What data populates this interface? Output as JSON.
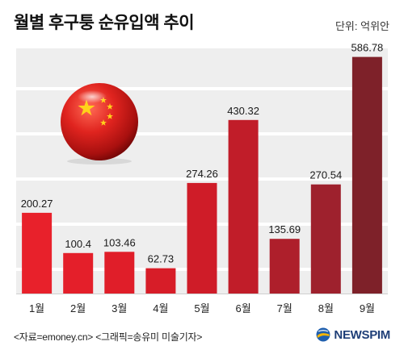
{
  "header": {
    "title": "월별 후구퉁 순유입액 추이",
    "unit": "단위: 억위안"
  },
  "chart_data": {
    "type": "bar",
    "title": "월별 후구퉁 순유입액 추이",
    "unit": "억위안",
    "categories": [
      "1월",
      "2월",
      "3월",
      "4월",
      "5월",
      "6월",
      "7월",
      "8월",
      "9월"
    ],
    "values": [
      200.27,
      100.4,
      103.46,
      62.73,
      274.26,
      430.32,
      135.69,
      270.54,
      586.78
    ],
    "value_labels": [
      "200.27",
      "100.4",
      "103.46",
      "62.73",
      "274.26",
      "430.32",
      "135.69",
      "270.54",
      "586.78"
    ],
    "ylim": [
      0,
      600
    ],
    "grid": true,
    "colors": [
      "#e8212b",
      "#e41f2a",
      "#e01e29",
      "#d71d28",
      "#cf1c28",
      "#c11d29",
      "#ae1f2b",
      "#9e212d",
      "#7e2129"
    ]
  },
  "footer": {
    "source": "<자료=emoney.cn> <그래픽=송유미 미술기자>",
    "logo_text": "NEWSPIM"
  },
  "decoration": {
    "icon": "china-flag-ball-icon",
    "flag_red": "#e0241f",
    "flag_star": "#ffd21a"
  }
}
